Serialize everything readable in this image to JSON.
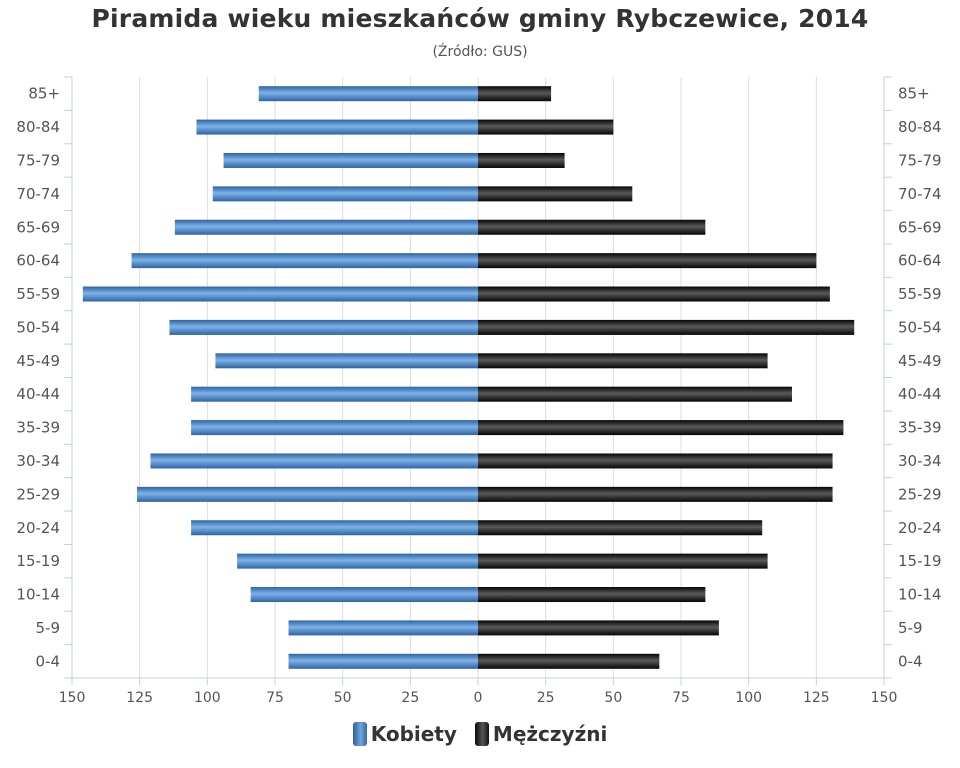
{
  "title": "Piramida wieku mieszkańców gminy Rybczewice, 2014",
  "subtitle": "(Źródło: GUS)",
  "colors": {
    "women": "#4a86c8",
    "men": "#1a1a1a",
    "grid": "#dddddd",
    "axis": "#c0d0e0"
  },
  "chart_data": {
    "type": "bar",
    "orientation": "horizontal-population-pyramid",
    "title": "Piramida wieku mieszkańców gminy Rybczewice, 2014",
    "subtitle": "(Źródło: GUS)",
    "categories": [
      "0-4",
      "5-9",
      "10-14",
      "15-19",
      "20-24",
      "25-29",
      "30-34",
      "35-39",
      "40-44",
      "45-49",
      "50-54",
      "55-59",
      "60-64",
      "65-69",
      "70-74",
      "75-79",
      "80-84",
      "85+"
    ],
    "series": [
      {
        "name": "Kobiety",
        "values": [
          70,
          70,
          84,
          89,
          106,
          126,
          121,
          106,
          106,
          97,
          114,
          146,
          128,
          112,
          98,
          94,
          104,
          81
        ]
      },
      {
        "name": "Mężczyźni",
        "values": [
          67,
          89,
          84,
          107,
          105,
          131,
          131,
          135,
          116,
          107,
          139,
          130,
          125,
          84,
          57,
          32,
          50,
          27
        ]
      }
    ],
    "xlim": [
      -150,
      150
    ],
    "x_ticks": [
      150,
      125,
      100,
      75,
      50,
      25,
      0,
      25,
      50,
      75,
      100,
      125,
      150
    ],
    "grid": true,
    "legend_position": "bottom-center"
  },
  "legend": {
    "women_label": "Kobiety",
    "men_label": "Mężczyźni"
  }
}
